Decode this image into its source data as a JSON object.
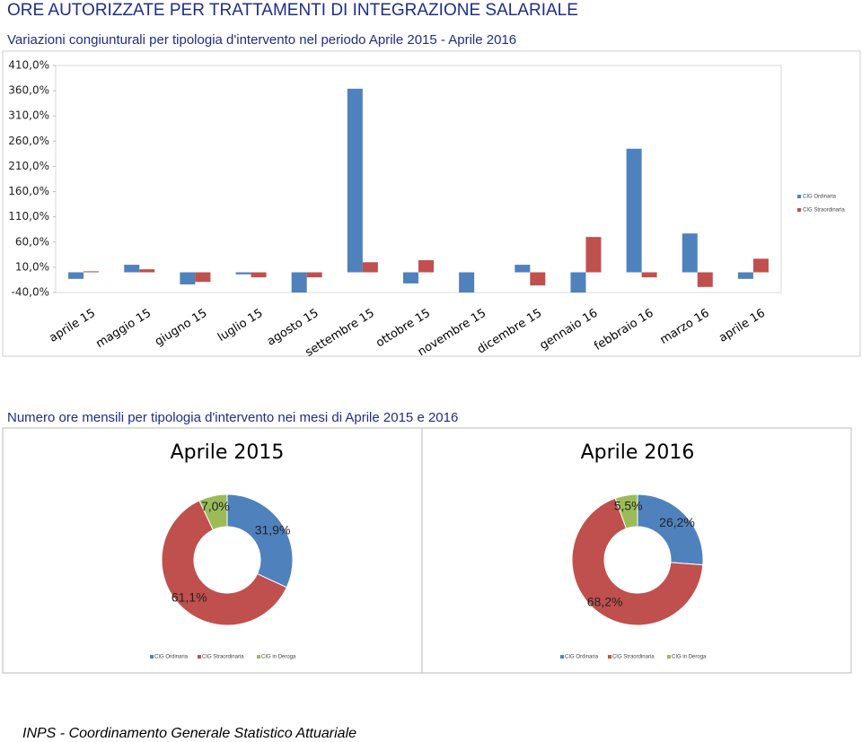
{
  "title": "ORE AUTORIZZATE PER TRATTAMENTI DI INTEGRAZIONE SALARIALE",
  "section_title": "Numero ore mensili per tipologia d'intervento nei mesi di Aprile 2015 e 2016",
  "footer": "INPS - Coordinamento Generale Statistico Attuariale",
  "chart_data": [
    {
      "type": "bar",
      "title": "Variazioni congiunturali per tipologia d'intervento nel periodo Aprile 2015 - Aprile 2016",
      "categories": [
        "aprile 15",
        "maggio 15",
        "giugno 15",
        "luglio 15",
        "agosto 15",
        "settembre 15",
        "ottobre 15",
        "novembre 15",
        "dicembre 15",
        "gennaio 16",
        "febbraio 16",
        "marzo 16",
        "aprile 16"
      ],
      "series": [
        {
          "name": "CIG Ordinaria",
          "color": "#4f81bd",
          "values": [
            -13,
            15,
            -24,
            -4,
            -40,
            364,
            -22,
            -40,
            15,
            -40,
            245,
            77,
            -13
          ]
        },
        {
          "name": "CIG Straordinaria",
          "color": "#c0504d",
          "values": [
            2,
            6,
            -19,
            -10,
            -10,
            20,
            24,
            0,
            -26,
            70,
            -10,
            -29,
            27
          ]
        }
      ],
      "ylim": [
        -40,
        410
      ],
      "yticks": [
        {
          "value": -40,
          "label": "-40,0%"
        },
        {
          "value": 10,
          "label": "10,0%"
        },
        {
          "value": 60,
          "label": "60,0%"
        },
        {
          "value": 110,
          "label": "110,0%"
        },
        {
          "value": 160,
          "label": "160,0%"
        },
        {
          "value": 210,
          "label": "210,0%"
        },
        {
          "value": 260,
          "label": "260,0%"
        },
        {
          "value": 310,
          "label": "310,0%"
        },
        {
          "value": 360,
          "label": "360,0%"
        },
        {
          "value": 410,
          "label": "410,0%"
        }
      ],
      "legend": "right"
    },
    {
      "type": "donut",
      "title": "Aprile 2015",
      "categories": [
        "CIG Ordinaria",
        "CIG Straordinaria",
        "CIG in Deroga"
      ],
      "values": [
        31.9,
        61.1,
        7.0
      ],
      "value_labels": [
        "31,9%",
        "61,1%",
        "7,0%"
      ],
      "colors": [
        "#4f81bd",
        "#c0504d",
        "#9bbb59"
      ],
      "legend": "bottom"
    },
    {
      "type": "donut",
      "title": "Aprile 2016",
      "categories": [
        "CIG Ordinaria",
        "CIG Straordinaria",
        "CIG in Deroga"
      ],
      "values": [
        26.2,
        68.2,
        5.5
      ],
      "value_labels": [
        "26,2%",
        "68,2%",
        "5,5%"
      ],
      "colors": [
        "#4f81bd",
        "#c0504d",
        "#9bbb59"
      ],
      "legend": "bottom"
    }
  ]
}
